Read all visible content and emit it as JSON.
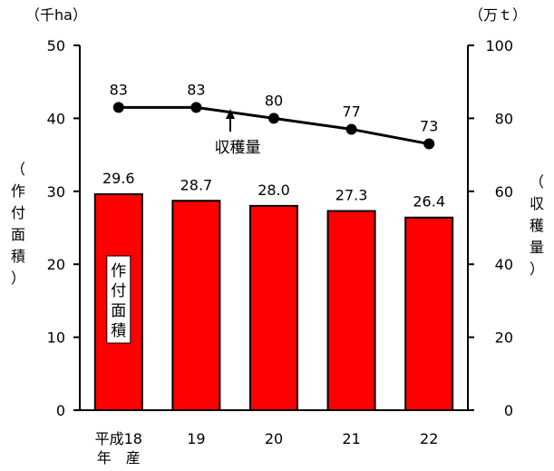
{
  "chart_data": {
    "type": "bar",
    "categories": [
      "平成18\n年　産",
      "19",
      "20",
      "21",
      "22"
    ],
    "series": [
      {
        "name": "作付面積",
        "type": "bar",
        "axis": "left",
        "values": [
          29.6,
          28.7,
          28.0,
          27.3,
          26.4
        ],
        "value_labels": [
          "29.6",
          "28.7",
          "28.0",
          "27.3",
          "26.4"
        ],
        "color": "#ff0000",
        "label_text": "作付面積"
      },
      {
        "name": "収穫量",
        "type": "line",
        "axis": "right",
        "values": [
          83,
          83,
          80,
          77,
          73
        ],
        "value_labels": [
          "83",
          "83",
          "80",
          "77",
          "73"
        ],
        "color": "#000000",
        "label_text": "収穫量"
      }
    ],
    "left_axis": {
      "unit": "（千ha）",
      "label": "（作付面積）",
      "ylim": [
        0,
        50
      ],
      "ticks": [
        0,
        10,
        20,
        30,
        40,
        50
      ]
    },
    "right_axis": {
      "unit": "（万ｔ）",
      "label": "（収穫量）",
      "ylim": [
        0,
        100
      ],
      "ticks": [
        0,
        20,
        40,
        60,
        80,
        100
      ]
    },
    "grid": false,
    "legend": "none"
  }
}
